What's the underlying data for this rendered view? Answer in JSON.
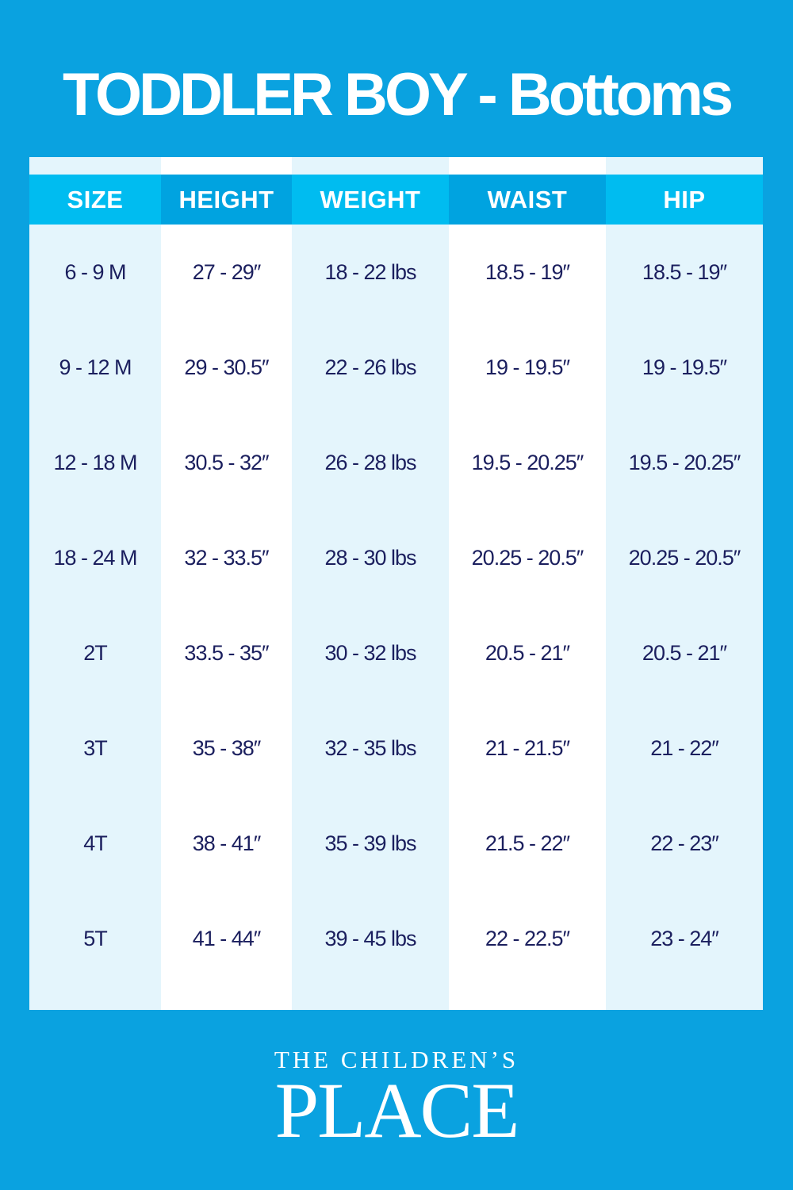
{
  "title": "TODDLER BOY - Bottoms",
  "colors": {
    "background": "#0aa2e0",
    "header_light": "#00bcf0",
    "header_dark": "#00a3e0",
    "column_light": "#e4f5fc",
    "text": "#1b1f5e"
  },
  "table": {
    "headers": [
      "SIZE",
      "HEIGHT",
      "WEIGHT",
      "WAIST",
      "HIP"
    ],
    "columns": [
      [
        "6 - 9 M",
        "9 - 12 M",
        "12  - 18 M",
        "18 - 24 M",
        "2T",
        "3T",
        "4T",
        "5T"
      ],
      [
        "27 - 29″",
        "29 - 30.5″",
        "30.5 - 32″",
        "32 - 33.5″",
        "33.5 - 35″",
        "35 - 38″",
        "38 - 41″",
        "41 - 44″"
      ],
      [
        "18 - 22 lbs",
        "22 - 26 lbs",
        "26 - 28 lbs",
        "28 - 30 lbs",
        "30 - 32 lbs",
        "32 - 35 lbs",
        "35 - 39 lbs",
        "39 - 45 lbs"
      ],
      [
        "18.5 - 19″",
        "19 - 19.5″",
        "19.5 - 20.25″",
        "20.25 - 20.5″",
        "20.5 - 21″",
        "21 - 21.5″",
        "21.5 - 22″",
        "22 - 22.5″"
      ],
      [
        "18.5 - 19″",
        "19 - 19.5″",
        "19.5 - 20.25″",
        "20.25 - 20.5″",
        "20.5 - 21″",
        "21 - 22″",
        "22 - 23″",
        "23 - 24″"
      ]
    ]
  },
  "logo": {
    "line1": "THE CHILDREN’S",
    "line2": "PLACE"
  }
}
